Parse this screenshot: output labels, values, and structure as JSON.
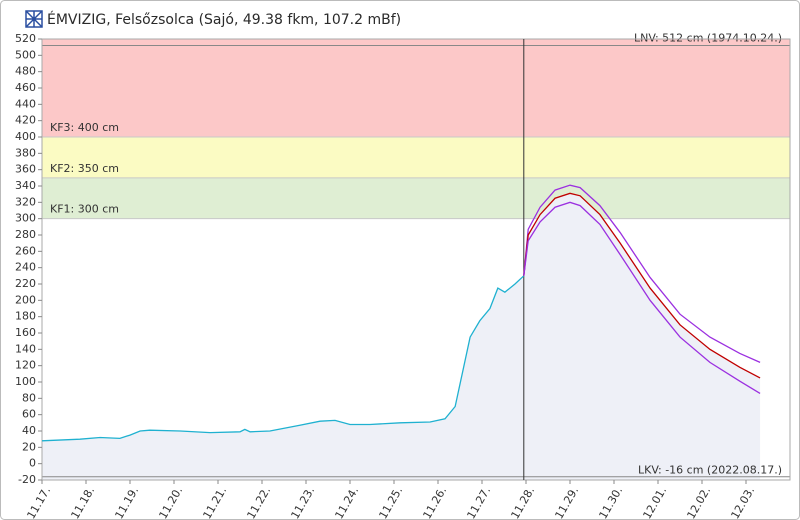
{
  "chart_data": {
    "type": "line",
    "title": "ÉMVIZIG, Felsőzsolca (Sajó, 49.38 fkm, 107.2 mBf)",
    "xlim": [
      0,
      17
    ],
    "xticks": [
      {
        "value": 0,
        "label": "11.17."
      },
      {
        "value": 1,
        "label": "11.18."
      },
      {
        "value": 2,
        "label": "11.19."
      },
      {
        "value": 3,
        "label": "11.20."
      },
      {
        "value": 4,
        "label": "11.21."
      },
      {
        "value": 5,
        "label": "11.22."
      },
      {
        "value": 6,
        "label": "11.23."
      },
      {
        "value": 7,
        "label": "11.24."
      },
      {
        "value": 8,
        "label": "11.25."
      },
      {
        "value": 9,
        "label": "11.26."
      },
      {
        "value": 10,
        "label": "11.27."
      },
      {
        "value": 11,
        "label": "11.28."
      },
      {
        "value": 12,
        "label": "11.29."
      },
      {
        "value": 13,
        "label": "11.30."
      },
      {
        "value": 14,
        "label": "12.01."
      },
      {
        "value": 15,
        "label": "12.02."
      },
      {
        "value": 16,
        "label": "12.03."
      }
    ],
    "ylim": [
      -20,
      520
    ],
    "yticks": [
      -20,
      0,
      20,
      40,
      60,
      80,
      100,
      120,
      140,
      160,
      180,
      200,
      220,
      240,
      260,
      280,
      300,
      320,
      340,
      360,
      380,
      400,
      420,
      440,
      460,
      480,
      500,
      520
    ],
    "levels": [
      {
        "label": "KF1: 300 cm",
        "value": 300,
        "color": "#dfeed3"
      },
      {
        "label": "KF2: 350 cm",
        "value": 350,
        "color": "#fbfbc3"
      },
      {
        "label": "KF3: 400 cm",
        "value": 400,
        "color": "#fcc8c8"
      }
    ],
    "records": [
      {
        "label": "LNV: 512 cm (1974.10.24.)",
        "value": 512,
        "corner": "top-right"
      },
      {
        "label": "LKV: -16 cm (2022.08.17.)",
        "value": -16,
        "corner": "bottom-right"
      }
    ],
    "now_x": 10.95,
    "area_color": "#eef0f7",
    "series": [
      {
        "color": "#1fb1d0",
        "area": true,
        "x": [
          0,
          0.86,
          1.32,
          1.77,
          2.0,
          2.23,
          2.45,
          3.14,
          3.82,
          4.5,
          4.61,
          4.73,
          5.18,
          5.86,
          6.32,
          6.66,
          7.0,
          7.45,
          8.14,
          8.82,
          9.16,
          9.39,
          9.55,
          9.73,
          9.95,
          10.18,
          10.36,
          10.52,
          10.75,
          10.95
        ],
        "values": [
          28,
          30,
          32,
          31,
          35,
          40,
          41,
          40,
          38,
          39,
          42,
          39,
          40,
          47,
          52,
          53,
          48,
          48,
          50,
          51,
          55,
          70,
          110,
          155,
          175,
          190,
          215,
          210,
          220,
          230
        ]
      },
      {
        "color": "#9b30e0",
        "area": false,
        "x": [
          10.95,
          11.05,
          11.32,
          11.66,
          12.0,
          12.23,
          12.68,
          13.14,
          13.82,
          14.5,
          15.18,
          15.86,
          16.32
        ],
        "values": [
          230,
          287,
          314,
          335,
          341,
          338,
          316,
          283,
          228,
          183,
          155,
          135,
          124
        ]
      },
      {
        "color": "#c00000",
        "area": true,
        "x": [
          10.95,
          11.05,
          11.32,
          11.66,
          12.0,
          12.23,
          12.68,
          13.14,
          13.82,
          14.5,
          15.18,
          15.86,
          16.32
        ],
        "values": [
          230,
          280,
          305,
          325,
          331,
          328,
          305,
          270,
          215,
          170,
          140,
          118,
          105
        ]
      },
      {
        "color": "#9b30e0",
        "area": false,
        "x": [
          10.95,
          11.05,
          11.32,
          11.66,
          12.0,
          12.23,
          12.68,
          13.14,
          13.82,
          14.5,
          15.18,
          15.86,
          16.32
        ],
        "values": [
          230,
          273,
          296,
          314,
          320,
          316,
          293,
          256,
          200,
          155,
          124,
          101,
          86
        ]
      }
    ]
  }
}
